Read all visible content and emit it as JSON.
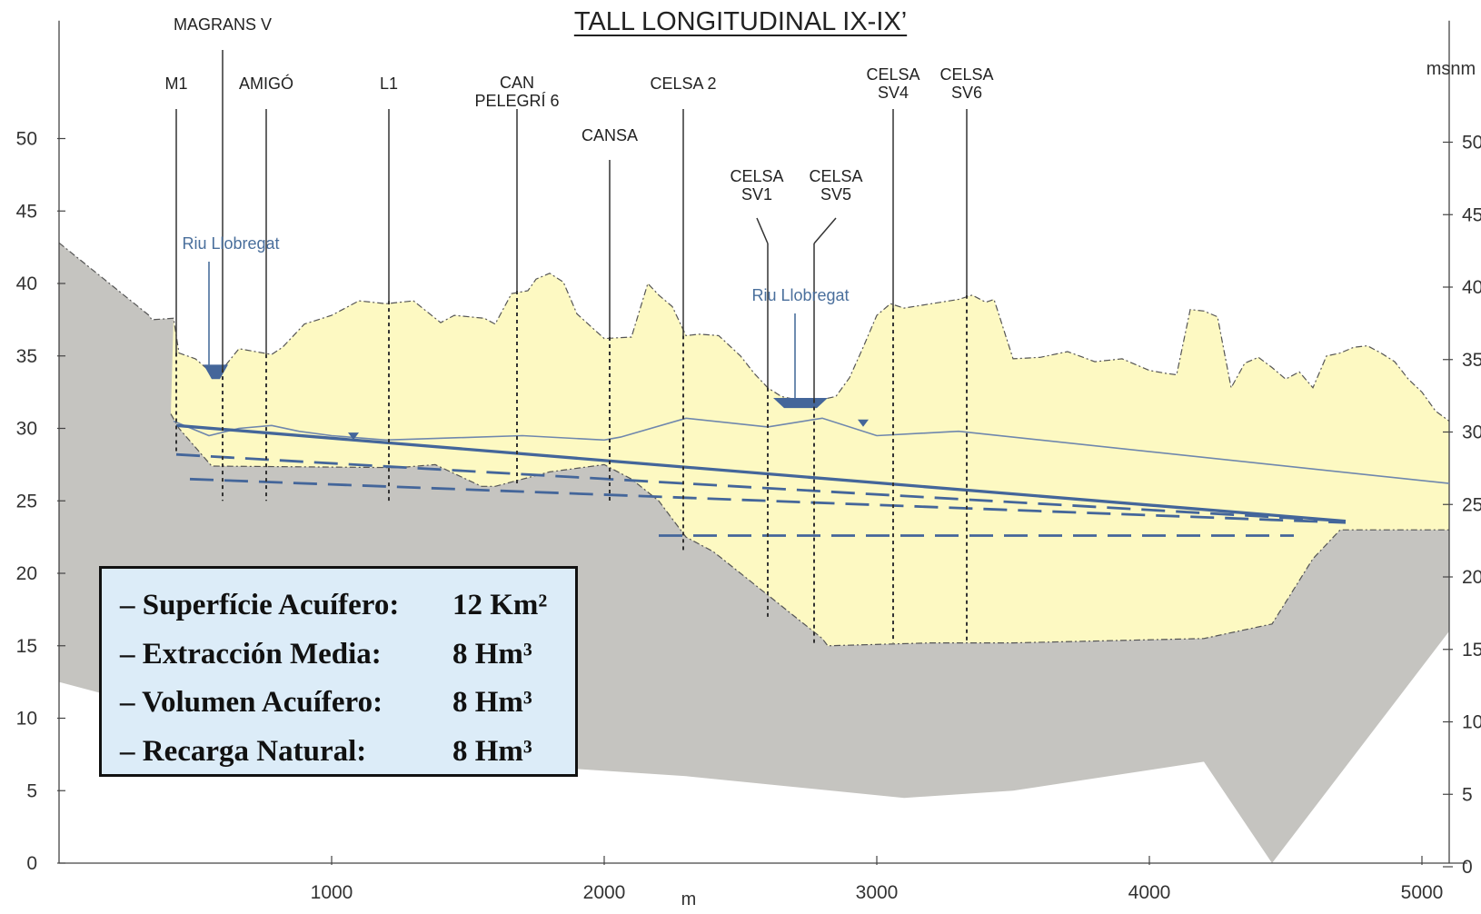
{
  "title": "TALL LONGITUDINAL IX-IX’",
  "units": {
    "vertical": "msnm",
    "horizontal": "m"
  },
  "river_label": "Riu Llobregat",
  "wells": [
    {
      "lines": [
        "MAGRANS V"
      ],
      "x": 600
    },
    {
      "lines": [
        "M1"
      ],
      "x": 430
    },
    {
      "lines": [
        "AMIGÓ"
      ],
      "x": 760
    },
    {
      "lines": [
        "L1"
      ],
      "x": 1210
    },
    {
      "lines": [
        "CAN",
        "PELEGRÍ 6"
      ],
      "x": 1680
    },
    {
      "lines": [
        "CANSA"
      ],
      "x": 2020
    },
    {
      "lines": [
        "CELSA 2"
      ],
      "x": 2290
    },
    {
      "lines": [
        "CELSA",
        "SV1"
      ],
      "x": 2600
    },
    {
      "lines": [
        "CELSA",
        "SV5"
      ],
      "x": 2770
    },
    {
      "lines": [
        "CELSA",
        "SV4"
      ],
      "x": 3060
    },
    {
      "lines": [
        "CELSA",
        "SV6"
      ],
      "x": 3330
    }
  ],
  "info": [
    {
      "label": "– Superfície Acuífero:",
      "value": "12 Km²"
    },
    {
      "label": "– Extracción Media:",
      "value": "8 Hm³"
    },
    {
      "label": "– Volumen Acuífero:",
      "value": "8 Hm³"
    },
    {
      "label": "– Recarga Natural:",
      "value": "8 Hm³"
    }
  ],
  "chart_data": {
    "type": "area",
    "xlabel": "m",
    "ylabel": "msnm",
    "xlim": [
      0,
      5100
    ],
    "ylim": [
      0,
      55
    ],
    "x_ticks": [
      1000,
      2000,
      3000,
      4000,
      5000
    ],
    "y_ticks": [
      0,
      5,
      10,
      15,
      20,
      25,
      30,
      35,
      40,
      45,
      50
    ],
    "colors": {
      "bedrock": "#c5c4c0",
      "aquifer": "#fdf9c2",
      "water": "#44669a",
      "river": "#4a6f9c"
    },
    "series": [
      {
        "name": "terrain",
        "x": [
          0,
          330,
          340,
          420,
          440,
          500,
          550,
          600,
          660,
          780,
          820,
          900,
          1000,
          1100,
          1200,
          1300,
          1400,
          1450,
          1560,
          1600,
          1660,
          1720,
          1750,
          1800,
          1850,
          1900,
          2000,
          2100,
          2160,
          2200,
          2250,
          2300,
          2350,
          2420,
          2500,
          2550,
          2600,
          2650,
          2700,
          2750,
          2800,
          2850,
          2900,
          2950,
          3000,
          3050,
          3100,
          3200,
          3300,
          3350,
          3400,
          3430,
          3500,
          3600,
          3700,
          3800,
          3900,
          4000,
          4060,
          4100,
          4150,
          4200,
          4250,
          4300,
          4350,
          4400,
          4450,
          4500,
          4550,
          4600,
          4650,
          4700,
          4750,
          4800,
          4850,
          4900,
          4950,
          5000,
          5050,
          5100
        ],
        "y": [
          42.8,
          37.8,
          37.5,
          37.6,
          35.2,
          34.8,
          34.0,
          34.1,
          35.5,
          35.1,
          35.6,
          37.2,
          37.8,
          38.8,
          38.6,
          38.8,
          37.3,
          37.8,
          37.6,
          37.2,
          39.3,
          39.5,
          40.3,
          40.7,
          40.1,
          37.9,
          36.2,
          36.3,
          40.0,
          39.2,
          38.4,
          36.4,
          36.5,
          36.4,
          35.0,
          33.8,
          32.8,
          32.2,
          32.0,
          32.0,
          32.0,
          32.2,
          33.5,
          35.6,
          37.8,
          38.6,
          38.3,
          38.6,
          38.9,
          39.2,
          38.7,
          38.9,
          34.8,
          34.9,
          35.3,
          34.6,
          34.8,
          34.0,
          33.8,
          33.7,
          38.2,
          38.1,
          37.7,
          32.8,
          34.5,
          34.9,
          34.2,
          33.4,
          33.9,
          32.8,
          35.0,
          35.2,
          35.6,
          35.7,
          35.2,
          34.6,
          33.4,
          32.5,
          31.2,
          30.5
        ]
      },
      {
        "name": "aquifer-base",
        "x": [
          410,
          440,
          560,
          1200,
          1250,
          1380,
          1550,
          1600,
          1800,
          2000,
          2030,
          2100,
          2200,
          2300,
          2400,
          2600,
          2800,
          2820,
          3200,
          3500,
          4200,
          4450,
          4500,
          4600,
          4700,
          5100
        ],
        "y": [
          31.0,
          30.0,
          27.4,
          27.3,
          27.3,
          27.5,
          26.0,
          26.0,
          27.0,
          27.5,
          27.2,
          26.5,
          25.0,
          22.5,
          21.5,
          18.5,
          15.5,
          15.0,
          15.2,
          15.2,
          15.5,
          16.5,
          18.0,
          21.0,
          23.0,
          23.0
        ]
      },
      {
        "name": "water-table",
        "x": [
          420,
          550,
          660,
          780,
          880,
          1000,
          1200,
          1700,
          2000,
          2060,
          2300,
          2600,
          2800,
          3000,
          3300,
          5100
        ],
        "y": [
          30.5,
          29.5,
          30.0,
          30.2,
          29.8,
          29.5,
          29.2,
          29.5,
          29.2,
          29.4,
          30.7,
          30.1,
          30.7,
          29.5,
          29.8,
          26.2
        ]
      },
      {
        "name": "piezometric-level",
        "x": [
          430,
          4720
        ],
        "y": [
          30.2,
          23.6
        ]
      },
      {
        "name": "level-1",
        "x": [
          430,
          4720
        ],
        "y": [
          28.2,
          23.6
        ]
      },
      {
        "name": "level-2",
        "x": [
          480,
          4720
        ],
        "y": [
          26.5,
          23.5
        ]
      },
      {
        "name": "level-3",
        "x": [
          2200,
          4530
        ],
        "y": [
          22.6,
          22.6
        ]
      }
    ]
  }
}
